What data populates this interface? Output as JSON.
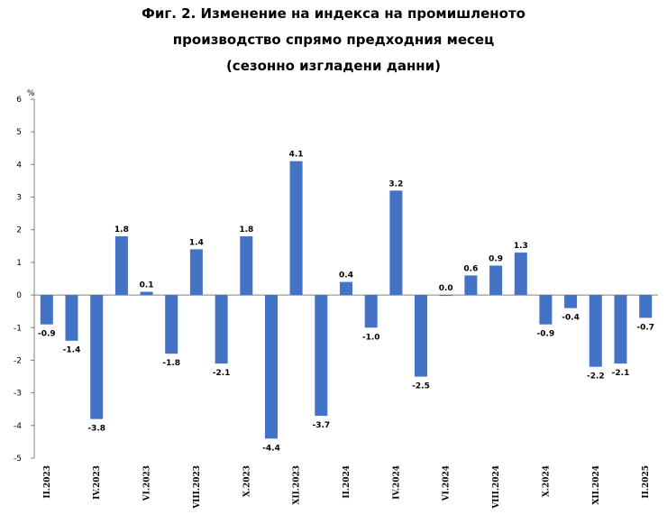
{
  "title_lines": [
    "Фиг. 2. Изменение на индекса на промишленото",
    "производство спрямо предходния месец",
    "(сезонно изгладени данни)"
  ],
  "chart_data": {
    "type": "bar",
    "title": "Фиг. 2. Изменение на индекса на промишленото производство спрямо предходния месец (сезонно изгладени данни)",
    "ylabel": "%",
    "xlabel": "",
    "ylim": [
      -5,
      6
    ],
    "yticks": [
      "6",
      "5",
      "4",
      "3",
      "2",
      "1",
      "0",
      "-1",
      "-2",
      "-3",
      "-4",
      "-5"
    ],
    "grid": false,
    "bar_color": "#4472C4",
    "categories": [
      "II.2023",
      "III.2023",
      "IV.2023",
      "V.2023",
      "VI.2023",
      "VII.2023",
      "VIII.2023",
      "IX.2023",
      "X.2023",
      "XI.2023",
      "XII.2023",
      "I.2024",
      "II.2024",
      "III.2024",
      "IV.2024",
      "V.2024",
      "VI.2024",
      "VII.2024",
      "VIII.2024",
      "IX.2024",
      "X.2024",
      "XI.2024",
      "XII.2024",
      "I.2025",
      "II.2025"
    ],
    "shown_category_labels": [
      "II.2023",
      "IV.2023",
      "VI.2023",
      "VIII.2023",
      "X.2023",
      "XII.2023",
      "II.2024",
      "IV.2024",
      "VI.2024",
      "VIII.2024",
      "X.2024",
      "XII.2024",
      "II.2025"
    ],
    "values": [
      -0.9,
      -1.4,
      -3.8,
      1.8,
      0.1,
      -1.8,
      1.4,
      -2.1,
      1.8,
      -4.4,
      4.1,
      -3.7,
      0.4,
      -1.0,
      3.2,
      -2.5,
      0.0,
      0.6,
      0.9,
      1.3,
      -0.9,
      -0.4,
      -2.2,
      -2.1,
      -0.7
    ],
    "data_labels": [
      "-0.9",
      "-1.4",
      "-3.8",
      "1.8",
      "0.1",
      "-1.8",
      "1.4",
      "-2.1",
      "1.8",
      "-4.4",
      "4.1",
      "-3.7",
      "0.4",
      "-1.0",
      "3.2",
      "-2.5",
      "0.0",
      "0.6",
      "0.9",
      "1.3",
      "-0.9",
      "-0.4",
      "-2.2",
      "-2.1",
      "-0.7"
    ]
  }
}
